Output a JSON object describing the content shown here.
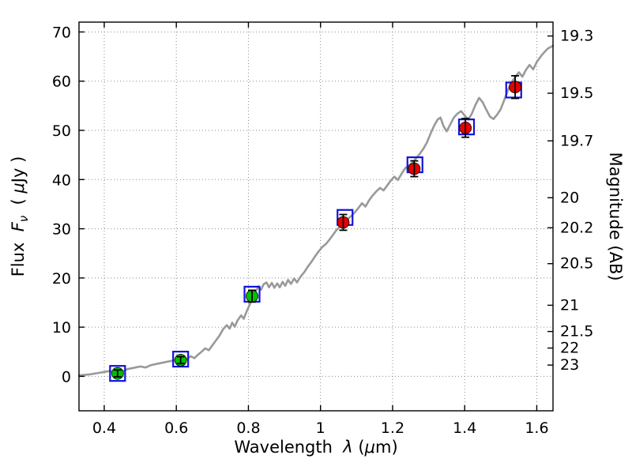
{
  "chart_data": {
    "type": "line+scatter",
    "title": "",
    "xlabel_runs": [
      {
        "t": "Wavelength  "
      },
      {
        "t": "λ",
        "italic": true
      },
      {
        "t": " ("
      },
      {
        "t": "μ",
        "italic": true
      },
      {
        "t": "m)"
      }
    ],
    "ylabel_left_runs": [
      {
        "t": "Flux  "
      },
      {
        "t": "F",
        "italic": true
      },
      {
        "t": "ν",
        "italic": true,
        "sub": true
      },
      {
        "t": "  ( "
      },
      {
        "t": "μ",
        "italic": true
      },
      {
        "t": "Jy )"
      }
    ],
    "ylabel_right": "Magnitude (AB)",
    "xlim": [
      0.33,
      1.645
    ],
    "ylim": [
      -7,
      72
    ],
    "x_ticks": {
      "values": [
        0.4,
        0.6,
        0.8,
        1.0,
        1.2,
        1.4,
        1.6
      ],
      "labels": [
        "0.4",
        "0.6",
        "0.8",
        "1",
        "1.2",
        "1.4",
        "1.6"
      ]
    },
    "y_ticks_left": {
      "values": [
        0,
        10,
        20,
        30,
        40,
        50,
        60,
        70
      ],
      "labels": [
        "0",
        "10",
        "20",
        "30",
        "40",
        "50",
        "60",
        "70"
      ]
    },
    "y_ticks_right_mag": {
      "labels": [
        "19.3",
        "19.5",
        "19.7",
        "20",
        "20.2",
        "20.5",
        "21",
        "21.5",
        "22",
        "23"
      ],
      "ab_zeropoint_ujy": 23.9
    },
    "grid": {
      "style": "dotted",
      "color": "#8a8a8a"
    },
    "colors": {
      "spectrum": "#999999",
      "obs_green": "#00c000",
      "obs_red": "#e60000",
      "model_square": "#1212dd",
      "errorbar": "#000000",
      "frame": "#000000"
    },
    "model_spectrum": [
      [
        0.33,
        0.2
      ],
      [
        0.36,
        0.4
      ],
      [
        0.385,
        0.7
      ],
      [
        0.4,
        0.9
      ],
      [
        0.415,
        1.1
      ],
      [
        0.43,
        0.8
      ],
      [
        0.44,
        1.3
      ],
      [
        0.45,
        1.0
      ],
      [
        0.465,
        1.5
      ],
      [
        0.48,
        1.7
      ],
      [
        0.5,
        2.0
      ],
      [
        0.515,
        1.8
      ],
      [
        0.53,
        2.3
      ],
      [
        0.55,
        2.6
      ],
      [
        0.57,
        2.9
      ],
      [
        0.59,
        3.2
      ],
      [
        0.6,
        3.4
      ],
      [
        0.615,
        3.7
      ],
      [
        0.625,
        3.3
      ],
      [
        0.64,
        4.1
      ],
      [
        0.65,
        3.7
      ],
      [
        0.66,
        4.4
      ],
      [
        0.67,
        5.0
      ],
      [
        0.68,
        5.7
      ],
      [
        0.69,
        5.3
      ],
      [
        0.7,
        6.3
      ],
      [
        0.71,
        7.3
      ],
      [
        0.72,
        8.3
      ],
      [
        0.73,
        9.6
      ],
      [
        0.74,
        10.4
      ],
      [
        0.748,
        9.7
      ],
      [
        0.755,
        10.9
      ],
      [
        0.762,
        10.1
      ],
      [
        0.77,
        11.4
      ],
      [
        0.78,
        12.4
      ],
      [
        0.787,
        11.7
      ],
      [
        0.795,
        13.2
      ],
      [
        0.805,
        14.8
      ],
      [
        0.81,
        16.0
      ],
      [
        0.815,
        15.4
      ],
      [
        0.82,
        17.2
      ],
      [
        0.828,
        18.3
      ],
      [
        0.835,
        17.6
      ],
      [
        0.842,
        18.7
      ],
      [
        0.85,
        19.1
      ],
      [
        0.857,
        18.1
      ],
      [
        0.865,
        19.0
      ],
      [
        0.872,
        18.0
      ],
      [
        0.88,
        18.9
      ],
      [
        0.887,
        18.1
      ],
      [
        0.895,
        19.2
      ],
      [
        0.902,
        18.4
      ],
      [
        0.91,
        19.6
      ],
      [
        0.918,
        18.8
      ],
      [
        0.927,
        19.9
      ],
      [
        0.935,
        19.1
      ],
      [
        0.945,
        20.3
      ],
      [
        0.955,
        21.2
      ],
      [
        0.965,
        22.3
      ],
      [
        0.975,
        23.3
      ],
      [
        0.985,
        24.4
      ],
      [
        0.995,
        25.4
      ],
      [
        1.005,
        26.3
      ],
      [
        1.015,
        26.9
      ],
      [
        1.025,
        27.8
      ],
      [
        1.035,
        28.8
      ],
      [
        1.045,
        29.8
      ],
      [
        1.055,
        30.5
      ],
      [
        1.065,
        31.3
      ],
      [
        1.075,
        31.9
      ],
      [
        1.085,
        32.6
      ],
      [
        1.095,
        33.3
      ],
      [
        1.105,
        34.2
      ],
      [
        1.115,
        35.2
      ],
      [
        1.125,
        34.5
      ],
      [
        1.135,
        35.8
      ],
      [
        1.145,
        36.8
      ],
      [
        1.155,
        37.6
      ],
      [
        1.165,
        38.3
      ],
      [
        1.175,
        37.8
      ],
      [
        1.185,
        38.8
      ],
      [
        1.195,
        39.8
      ],
      [
        1.205,
        40.6
      ],
      [
        1.215,
        39.9
      ],
      [
        1.225,
        41.2
      ],
      [
        1.235,
        42.3
      ],
      [
        1.245,
        42.9
      ],
      [
        1.255,
        43.4
      ],
      [
        1.265,
        44.3
      ],
      [
        1.275,
        45.2
      ],
      [
        1.285,
        46.2
      ],
      [
        1.295,
        47.5
      ],
      [
        1.305,
        49.3
      ],
      [
        1.315,
        50.9
      ],
      [
        1.325,
        52.2
      ],
      [
        1.333,
        52.6
      ],
      [
        1.341,
        50.9
      ],
      [
        1.35,
        49.8
      ],
      [
        1.36,
        51.2
      ],
      [
        1.37,
        52.6
      ],
      [
        1.38,
        53.4
      ],
      [
        1.39,
        53.9
      ],
      [
        1.4,
        53.0
      ],
      [
        1.41,
        52.2
      ],
      [
        1.42,
        53.4
      ],
      [
        1.43,
        55.2
      ],
      [
        1.44,
        56.6
      ],
      [
        1.45,
        55.7
      ],
      [
        1.46,
        54.2
      ],
      [
        1.47,
        52.8
      ],
      [
        1.48,
        52.3
      ],
      [
        1.49,
        53.2
      ],
      [
        1.5,
        54.3
      ],
      [
        1.51,
        56.2
      ],
      [
        1.52,
        58.2
      ],
      [
        1.53,
        59.8
      ],
      [
        1.54,
        60.8
      ],
      [
        1.55,
        61.8
      ],
      [
        1.56,
        60.9
      ],
      [
        1.57,
        62.3
      ],
      [
        1.58,
        63.3
      ],
      [
        1.59,
        62.4
      ],
      [
        1.6,
        63.9
      ],
      [
        1.615,
        65.4
      ],
      [
        1.63,
        66.6
      ],
      [
        1.645,
        67.2
      ]
    ],
    "observed_photometry": [
      {
        "wavelength_um": 0.437,
        "flux_ujy": 0.6,
        "err_ujy": 0.7,
        "color": "green"
      },
      {
        "wavelength_um": 0.612,
        "flux_ujy": 3.3,
        "err_ujy": 0.7,
        "color": "green"
      },
      {
        "wavelength_um": 0.81,
        "flux_ujy": 16.3,
        "err_ujy": 1.2,
        "color": "green"
      },
      {
        "wavelength_um": 1.063,
        "flux_ujy": 31.3,
        "err_ujy": 1.6,
        "color": "red"
      },
      {
        "wavelength_um": 1.26,
        "flux_ujy": 42.2,
        "err_ujy": 1.6,
        "color": "red"
      },
      {
        "wavelength_um": 1.402,
        "flux_ujy": 50.5,
        "err_ujy": 1.9,
        "color": "red"
      },
      {
        "wavelength_um": 1.54,
        "flux_ujy": 58.8,
        "err_ujy": 2.3,
        "color": "red"
      }
    ],
    "model_photometry": [
      {
        "wavelength_um": 0.437,
        "flux_ujy": 0.6
      },
      {
        "wavelength_um": 0.612,
        "flux_ujy": 3.5
      },
      {
        "wavelength_um": 0.81,
        "flux_ujy": 16.7
      },
      {
        "wavelength_um": 1.068,
        "flux_ujy": 32.3
      },
      {
        "wavelength_um": 1.262,
        "flux_ujy": 43.0
      },
      {
        "wavelength_um": 1.405,
        "flux_ujy": 50.7
      },
      {
        "wavelength_um": 1.536,
        "flux_ujy": 58.2
      }
    ]
  }
}
